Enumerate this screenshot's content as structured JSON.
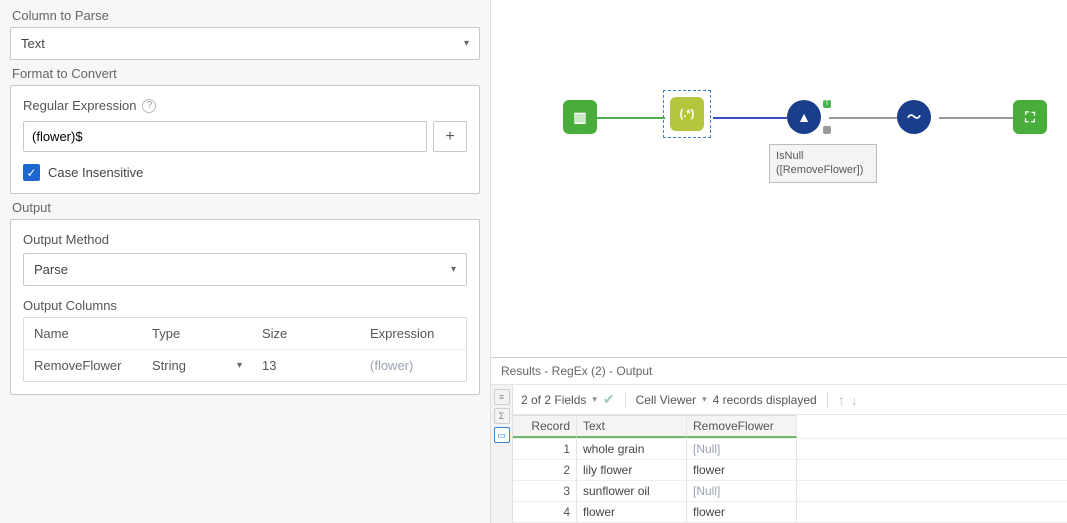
{
  "leftPanel": {
    "columnToParse": {
      "label": "Column to Parse",
      "value": "Text"
    },
    "formatToConvert": {
      "label": "Format to Convert",
      "regexLabel": "Regular Expression",
      "regexValue": "(flower)$",
      "addBtn": "+",
      "caseInsensitiveLabel": "Case Insensitive",
      "caseInsensitiveChecked": true
    },
    "output": {
      "label": "Output",
      "methodLabel": "Output Method",
      "methodValue": "Parse",
      "columnsLabel": "Output Columns",
      "headers": {
        "name": "Name",
        "type": "Type",
        "size": "Size",
        "expression": "Expression"
      },
      "row": {
        "name": "RemoveFlower",
        "type": "String",
        "size": "13",
        "expression": "(flower)"
      }
    }
  },
  "canvas": {
    "formula": {
      "line1": "IsNull",
      "line2": "([RemoveFlower])"
    },
    "nodes": {
      "input": {
        "glyph": "⎋"
      },
      "regex": {
        "glyph": "(.*)"
      },
      "filter": {
        "glyph": "△"
      },
      "formula": {
        "glyph": "✓"
      },
      "browse": {
        "glyph": "⧉"
      }
    }
  },
  "results": {
    "title": "Results - RegEx (2) - Output",
    "toolbar": {
      "fields": "2 of 2 Fields",
      "cellViewer": "Cell Viewer",
      "records": "4 records displayed"
    },
    "headers": {
      "record": "Record",
      "text": "Text",
      "remove": "RemoveFlower"
    },
    "rows": [
      {
        "n": "1",
        "text": "whole grain",
        "remove": "[Null]",
        "isNull": true
      },
      {
        "n": "2",
        "text": "lily flower",
        "remove": "flower",
        "isNull": false
      },
      {
        "n": "3",
        "text": "sunflower oil",
        "remove": "[Null]",
        "isNull": true
      },
      {
        "n": "4",
        "text": "flower",
        "remove": "flower",
        "isNull": false
      }
    ]
  },
  "colors": {
    "accent": "#1e66d0",
    "green": "#49ad3c",
    "olive": "#b5c63e",
    "navy": "#1a3e8c"
  }
}
